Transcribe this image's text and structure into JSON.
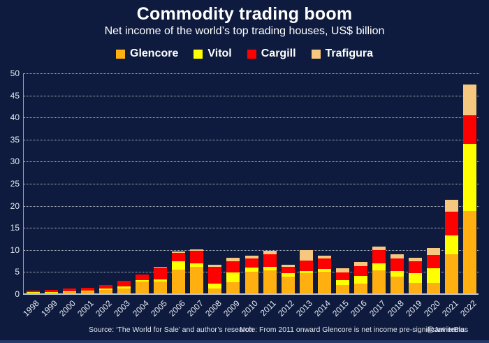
{
  "title": "Commodity trading boom",
  "subtitle": "Net income of the world’s top trading houses, US$ billion",
  "legend": {
    "items": [
      {
        "label": "Glencore",
        "color": "#FFAF0F"
      },
      {
        "label": "Vitol",
        "color": "#FFFF00"
      },
      {
        "label": "Cargill",
        "color": "#FE0000"
      },
      {
        "label": "Trafigura",
        "color": "#F6C77F"
      }
    ]
  },
  "footer": {
    "source": "Source: ‘The World for Sale’ and author’s research",
    "note": "Note: From 2011 onward Glencore is net income pre-significant items",
    "handle": "@JavierBlas"
  },
  "chart_data": {
    "type": "bar",
    "stacked": true,
    "title": "Commodity trading boom",
    "subtitle": "Net income of the world’s top trading houses, US$ billion",
    "ylabel": "US$ billion",
    "ylim": [
      0,
      50
    ],
    "ytick_step": 5,
    "grid": "horizontal-dotted",
    "legend_position": "top-center",
    "categories": [
      "1998",
      "1999",
      "2000",
      "2001",
      "2002",
      "2003",
      "2004",
      "2005",
      "2006",
      "2007",
      "2008",
      "2009",
      "2010",
      "2011",
      "2012",
      "2013",
      "2014",
      "2015",
      "2016",
      "2017",
      "2018",
      "2019",
      "2020",
      "2021",
      "2022"
    ],
    "series": [
      {
        "name": "Glencore",
        "color": "#FFAF0F",
        "values": [
          0.3,
          0.4,
          0.5,
          0.6,
          0.9,
          1.3,
          2.8,
          2.9,
          5.5,
          6.2,
          1.3,
          2.7,
          5.0,
          5.4,
          3.9,
          4.8,
          5.0,
          2.0,
          2.3,
          5.4,
          4.0,
          2.6,
          2.5,
          9.1,
          18.9
        ]
      },
      {
        "name": "Vitol",
        "color": "#FFFF00",
        "values": [
          0.1,
          0.1,
          0.2,
          0.2,
          0.3,
          0.4,
          0.4,
          0.5,
          2.0,
          0.8,
          1.1,
          2.2,
          1.0,
          0.8,
          0.8,
          0.5,
          0.7,
          1.2,
          1.8,
          1.5,
          1.2,
          2.1,
          3.4,
          4.2,
          15.1
        ]
      },
      {
        "name": "Cargill",
        "color": "#FE0000",
        "values": [
          0.4,
          0.5,
          0.6,
          0.7,
          0.9,
          1.3,
          1.3,
          2.6,
          1.9,
          2.8,
          3.7,
          2.6,
          2.1,
          2.9,
          1.4,
          2.3,
          2.4,
          1.7,
          2.2,
          3.1,
          2.9,
          2.7,
          3.0,
          5.3,
          6.5
        ]
      },
      {
        "name": "Trafigura",
        "color": "#F6C77F",
        "values": [
          0.0,
          0.0,
          0.0,
          0.0,
          0.0,
          0.0,
          0.0,
          0.2,
          0.3,
          0.3,
          0.5,
          0.8,
          0.6,
          0.7,
          0.5,
          2.4,
          0.6,
          1.0,
          1.0,
          0.8,
          1.0,
          0.9,
          1.5,
          2.8,
          7.0
        ]
      }
    ]
  }
}
